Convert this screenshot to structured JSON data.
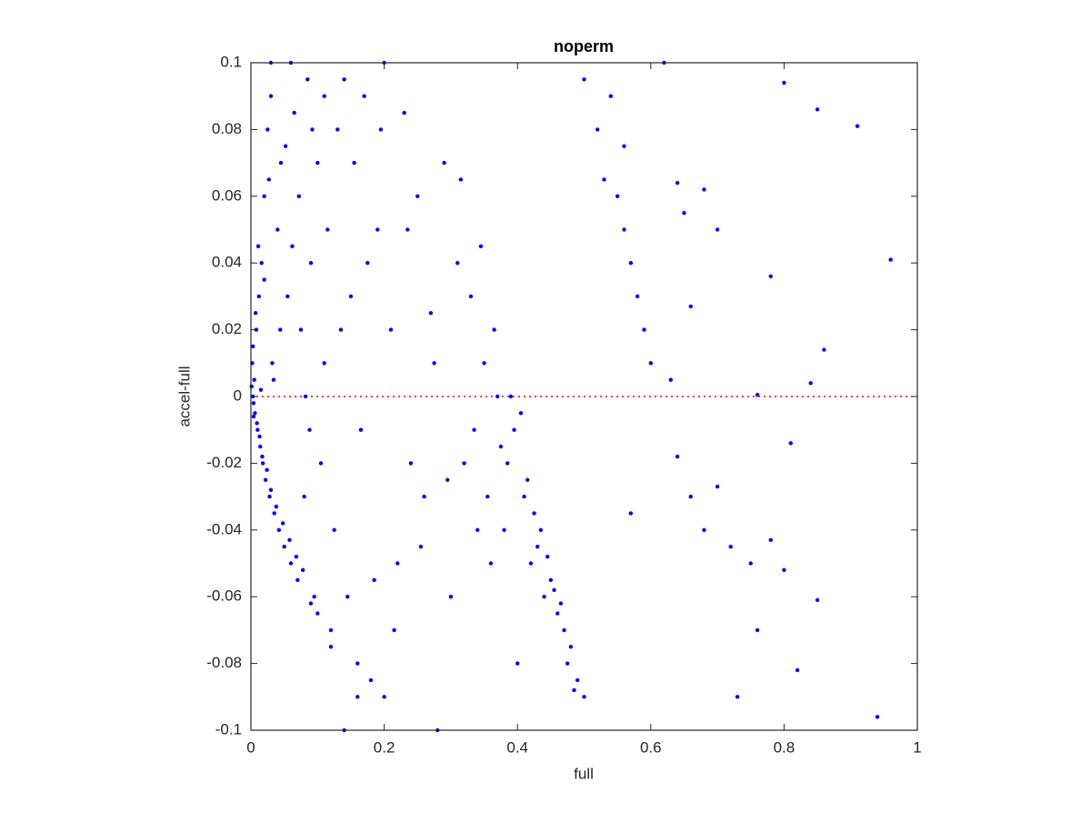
{
  "chart_data": {
    "type": "scatter",
    "title": "noperm",
    "x_label": "full",
    "y_label": "accel-full",
    "xlim": [
      0,
      1
    ],
    "ylim": [
      -0.1,
      0.1
    ],
    "xticks": [
      0,
      0.2,
      0.4,
      0.6,
      0.8,
      1
    ],
    "yticks": [
      -0.1,
      -0.08,
      -0.06,
      -0.04,
      -0.02,
      0,
      0.02,
      0.04,
      0.06,
      0.08,
      0.1
    ],
    "reference_line": {
      "y": 0,
      "color": "#ff0000"
    },
    "series": [
      {
        "color": "#0000ff",
        "x": [
          0.002,
          0.003,
          0.004,
          0.005,
          0.006,
          0.008,
          0.01,
          0.012,
          0.014,
          0.016,
          0.018,
          0.02,
          0.022,
          0.025,
          0.028,
          0.03,
          0.032,
          0.035,
          0.04,
          0.042,
          0.045,
          0.05,
          0.055,
          0.06,
          0.065,
          0.07,
          0.075,
          0.08,
          0.085,
          0.09,
          0.095,
          0.1,
          0.1,
          0.11,
          0.12,
          0.13,
          0.14,
          0.15,
          0.16,
          0.17,
          0.18,
          0.19,
          0.2,
          0.2,
          0.21,
          0.22,
          0.23,
          0.24,
          0.25,
          0.26,
          0.27,
          0.28,
          0.29,
          0.3,
          0.31,
          0.32,
          0.33,
          0.34,
          0.35,
          0.36,
          0.37,
          0.38,
          0.39,
          0.4,
          0.41,
          0.42,
          0.43,
          0.44,
          0.45,
          0.46,
          0.47,
          0.48,
          0.49,
          0.5,
          0.5,
          0.52,
          0.53,
          0.54,
          0.55,
          0.56,
          0.57,
          0.58,
          0.59,
          0.6,
          0.62,
          0.63,
          0.64,
          0.65,
          0.66,
          0.64,
          0.66,
          0.68,
          0.68,
          0.7,
          0.7,
          0.72,
          0.73,
          0.75,
          0.76,
          0.78,
          0.78,
          0.8,
          0.8,
          0.81,
          0.82,
          0.84,
          0.85,
          0.85,
          0.86,
          0.91,
          0.94,
          0.96,
          0.76,
          0.57,
          0.56,
          0.001,
          0.003,
          0.004,
          0.007,
          0.009,
          0.011,
          0.013,
          0.015,
          0.017,
          0.02,
          0.024,
          0.027,
          0.03,
          0.034,
          0.038,
          0.044,
          0.048,
          0.052,
          0.058,
          0.062,
          0.068,
          0.072,
          0.078,
          0.082,
          0.088,
          0.092,
          0.105,
          0.115,
          0.125,
          0.135,
          0.145,
          0.155,
          0.165,
          0.175,
          0.185,
          0.195,
          0.215,
          0.235,
          0.255,
          0.275,
          0.295,
          0.315,
          0.335,
          0.345,
          0.355,
          0.365,
          0.375,
          0.385,
          0.395,
          0.405,
          0.415,
          0.425,
          0.435,
          0.445,
          0.455,
          0.465,
          0.475,
          0.485,
          0.14,
          0.11,
          0.06,
          0.03,
          0.12,
          0.16,
          0.09
        ],
        "y": [
          0.01,
          0.0,
          -0.002,
          0.005,
          -0.005,
          0.02,
          -0.01,
          0.03,
          -0.015,
          0.04,
          -0.02,
          0.06,
          -0.025,
          0.08,
          -0.03,
          0.09,
          0.01,
          -0.035,
          0.05,
          -0.04,
          0.07,
          -0.045,
          0.03,
          -0.05,
          0.085,
          -0.055,
          0.02,
          -0.03,
          0.095,
          0.04,
          -0.06,
          0.07,
          -0.065,
          0.01,
          -0.07,
          0.08,
          -0.1,
          0.03,
          -0.08,
          0.09,
          -0.085,
          0.05,
          -0.09,
          0.1,
          0.02,
          -0.05,
          0.085,
          -0.02,
          0.06,
          -0.03,
          0.025,
          -0.1,
          0.07,
          -0.06,
          0.04,
          -0.02,
          0.03,
          -0.04,
          0.01,
          -0.05,
          0.0,
          -0.04,
          0.0,
          -0.08,
          -0.03,
          -0.05,
          -0.045,
          -0.06,
          -0.055,
          -0.065,
          -0.07,
          -0.075,
          -0.085,
          -0.09,
          0.095,
          0.08,
          0.065,
          0.09,
          0.06,
          0.05,
          0.04,
          0.03,
          0.02,
          0.01,
          0.1,
          0.005,
          0.064,
          0.055,
          0.027,
          -0.018,
          -0.03,
          -0.04,
          0.062,
          -0.027,
          0.05,
          -0.045,
          -0.09,
          -0.05,
          -0.07,
          0.036,
          -0.043,
          0.094,
          -0.052,
          -0.014,
          -0.082,
          0.004,
          0.086,
          -0.061,
          0.014,
          0.081,
          -0.096,
          0.041,
          0.0005,
          -0.035,
          0.075,
          0.003,
          0.015,
          -0.006,
          0.025,
          -0.008,
          0.045,
          -0.012,
          0.002,
          -0.018,
          0.035,
          -0.022,
          0.065,
          -0.028,
          0.005,
          -0.033,
          0.02,
          -0.038,
          0.075,
          -0.043,
          0.045,
          -0.048,
          0.06,
          -0.052,
          0.0,
          -0.01,
          0.08,
          -0.02,
          0.05,
          -0.04,
          0.02,
          -0.06,
          0.07,
          -0.01,
          0.04,
          -0.055,
          0.08,
          -0.07,
          0.05,
          -0.045,
          0.01,
          -0.025,
          0.065,
          -0.01,
          0.045,
          -0.03,
          0.02,
          -0.015,
          -0.02,
          -0.01,
          -0.005,
          -0.025,
          -0.035,
          -0.04,
          -0.048,
          -0.058,
          -0.062,
          -0.08,
          -0.088,
          0.095,
          0.09,
          0.1,
          0.1,
          -0.075,
          -0.09,
          -0.062
        ]
      }
    ]
  }
}
